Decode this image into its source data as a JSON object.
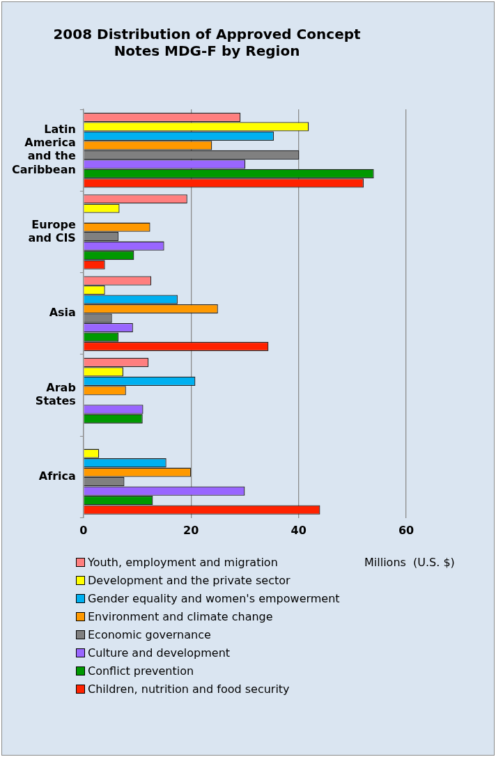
{
  "chart_data": {
    "type": "bar",
    "orientation": "horizontal",
    "title": "2008 Distribution of Approved Concept Notes MDG-F by Region",
    "xlabel": "Millions  (U.S. $)",
    "categories": [
      "Latin America and the Caribbean",
      "Europe and CIS",
      "Asia",
      "Arab States",
      "Africa"
    ],
    "xlim": [
      0,
      60
    ],
    "xticks": [
      0,
      20,
      40,
      60
    ],
    "grid": "x",
    "legend": "bottom",
    "series": [
      {
        "name": "Youth, employment and migration",
        "color": "#ff7f7f",
        "values": [
          29.2,
          19.3,
          12.6,
          12.1,
          null
        ]
      },
      {
        "name": "Development and the private sector",
        "color": "#ffff00",
        "values": [
          41.9,
          6.7,
          4,
          7.4,
          2.9
        ]
      },
      {
        "name": "Gender equality and women's empowerment",
        "color": "#00b0f0",
        "values": [
          35.4,
          null,
          17.5,
          20.8,
          15.4
        ]
      },
      {
        "name": "Environment and climate change",
        "color": "#ff9900",
        "values": [
          23.9,
          12.4,
          25,
          7.9,
          20
        ]
      },
      {
        "name": "Economic governance",
        "color": "#808080",
        "values": [
          40.1,
          6.5,
          5.3,
          null,
          7.6
        ]
      },
      {
        "name": "Culture and development",
        "color": "#9966ff",
        "values": [
          30.1,
          15,
          9.2,
          11.1,
          30
        ]
      },
      {
        "name": "Conflict prevention",
        "color": "#009900",
        "values": [
          54,
          9.4,
          6.5,
          11,
          12.9
        ]
      },
      {
        "name": "Children, nutrition and food security",
        "color": "#ff2200",
        "values": [
          52.1,
          4,
          34.4,
          null,
          44
        ]
      }
    ]
  }
}
